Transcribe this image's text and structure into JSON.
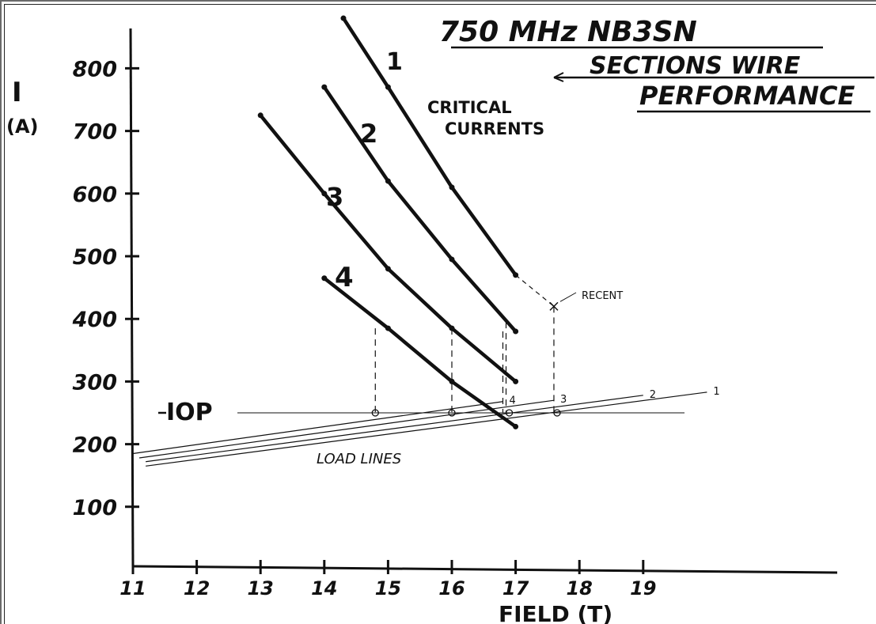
{
  "chart_data": {
    "type": "line",
    "title": "750 MHz NB3SN",
    "subtitle_line1": "SECTIONS WIRE",
    "subtitle_line2": "PERFORMANCE",
    "annotation_critical_1": "CRITICAL",
    "annotation_critical_2": "CURRENTS",
    "annotation_recent": "RECENT",
    "annotation_load_lines": "LOAD LINES",
    "annotation_iop": "IOP",
    "xlabel": "FIELD (T)",
    "ylabel_line1": "I",
    "ylabel_line2": "(A)",
    "xlim": [
      11,
      24
    ],
    "ylim": [
      0,
      850
    ],
    "x_ticks": [
      11,
      12,
      13,
      14,
      15,
      16,
      17,
      18,
      19
    ],
    "y_ticks": [
      100,
      200,
      300,
      400,
      500,
      600,
      700,
      800
    ],
    "iop_value": 250,
    "critical_current_series": [
      {
        "name": "1",
        "points": [
          [
            14.3,
            880
          ],
          [
            15.0,
            770
          ],
          [
            16.0,
            610
          ],
          [
            17.0,
            470
          ]
        ]
      },
      {
        "name": "2",
        "points": [
          [
            14.0,
            770
          ],
          [
            15.0,
            620
          ],
          [
            16.0,
            495
          ],
          [
            17.0,
            380
          ]
        ]
      },
      {
        "name": "3",
        "points": [
          [
            13.0,
            725
          ],
          [
            14.0,
            600
          ],
          [
            15.0,
            480
          ],
          [
            16.0,
            385
          ],
          [
            17.0,
            300
          ]
        ]
      },
      {
        "name": "4",
        "points": [
          [
            14.0,
            465
          ],
          [
            15.0,
            385
          ],
          [
            16.0,
            300
          ],
          [
            17.0,
            228
          ]
        ]
      }
    ],
    "recent_point": {
      "x": 17.6,
      "y": 420
    },
    "load_lines": [
      {
        "name": "1",
        "from": [
          11.2,
          165
        ],
        "to": [
          20.0,
          283
        ]
      },
      {
        "name": "2",
        "from": [
          11.2,
          172
        ],
        "to": [
          19.0,
          278
        ]
      },
      {
        "name": "3",
        "from": [
          11.1,
          178
        ],
        "to": [
          17.6,
          270
        ]
      },
      {
        "name": "4",
        "from": [
          11.0,
          185
        ],
        "to": [
          16.8,
          268
        ]
      }
    ],
    "iop_intersections_x": [
      14.8,
      16.0,
      16.9,
      17.65
    ],
    "grid": false,
    "legend": "none"
  }
}
